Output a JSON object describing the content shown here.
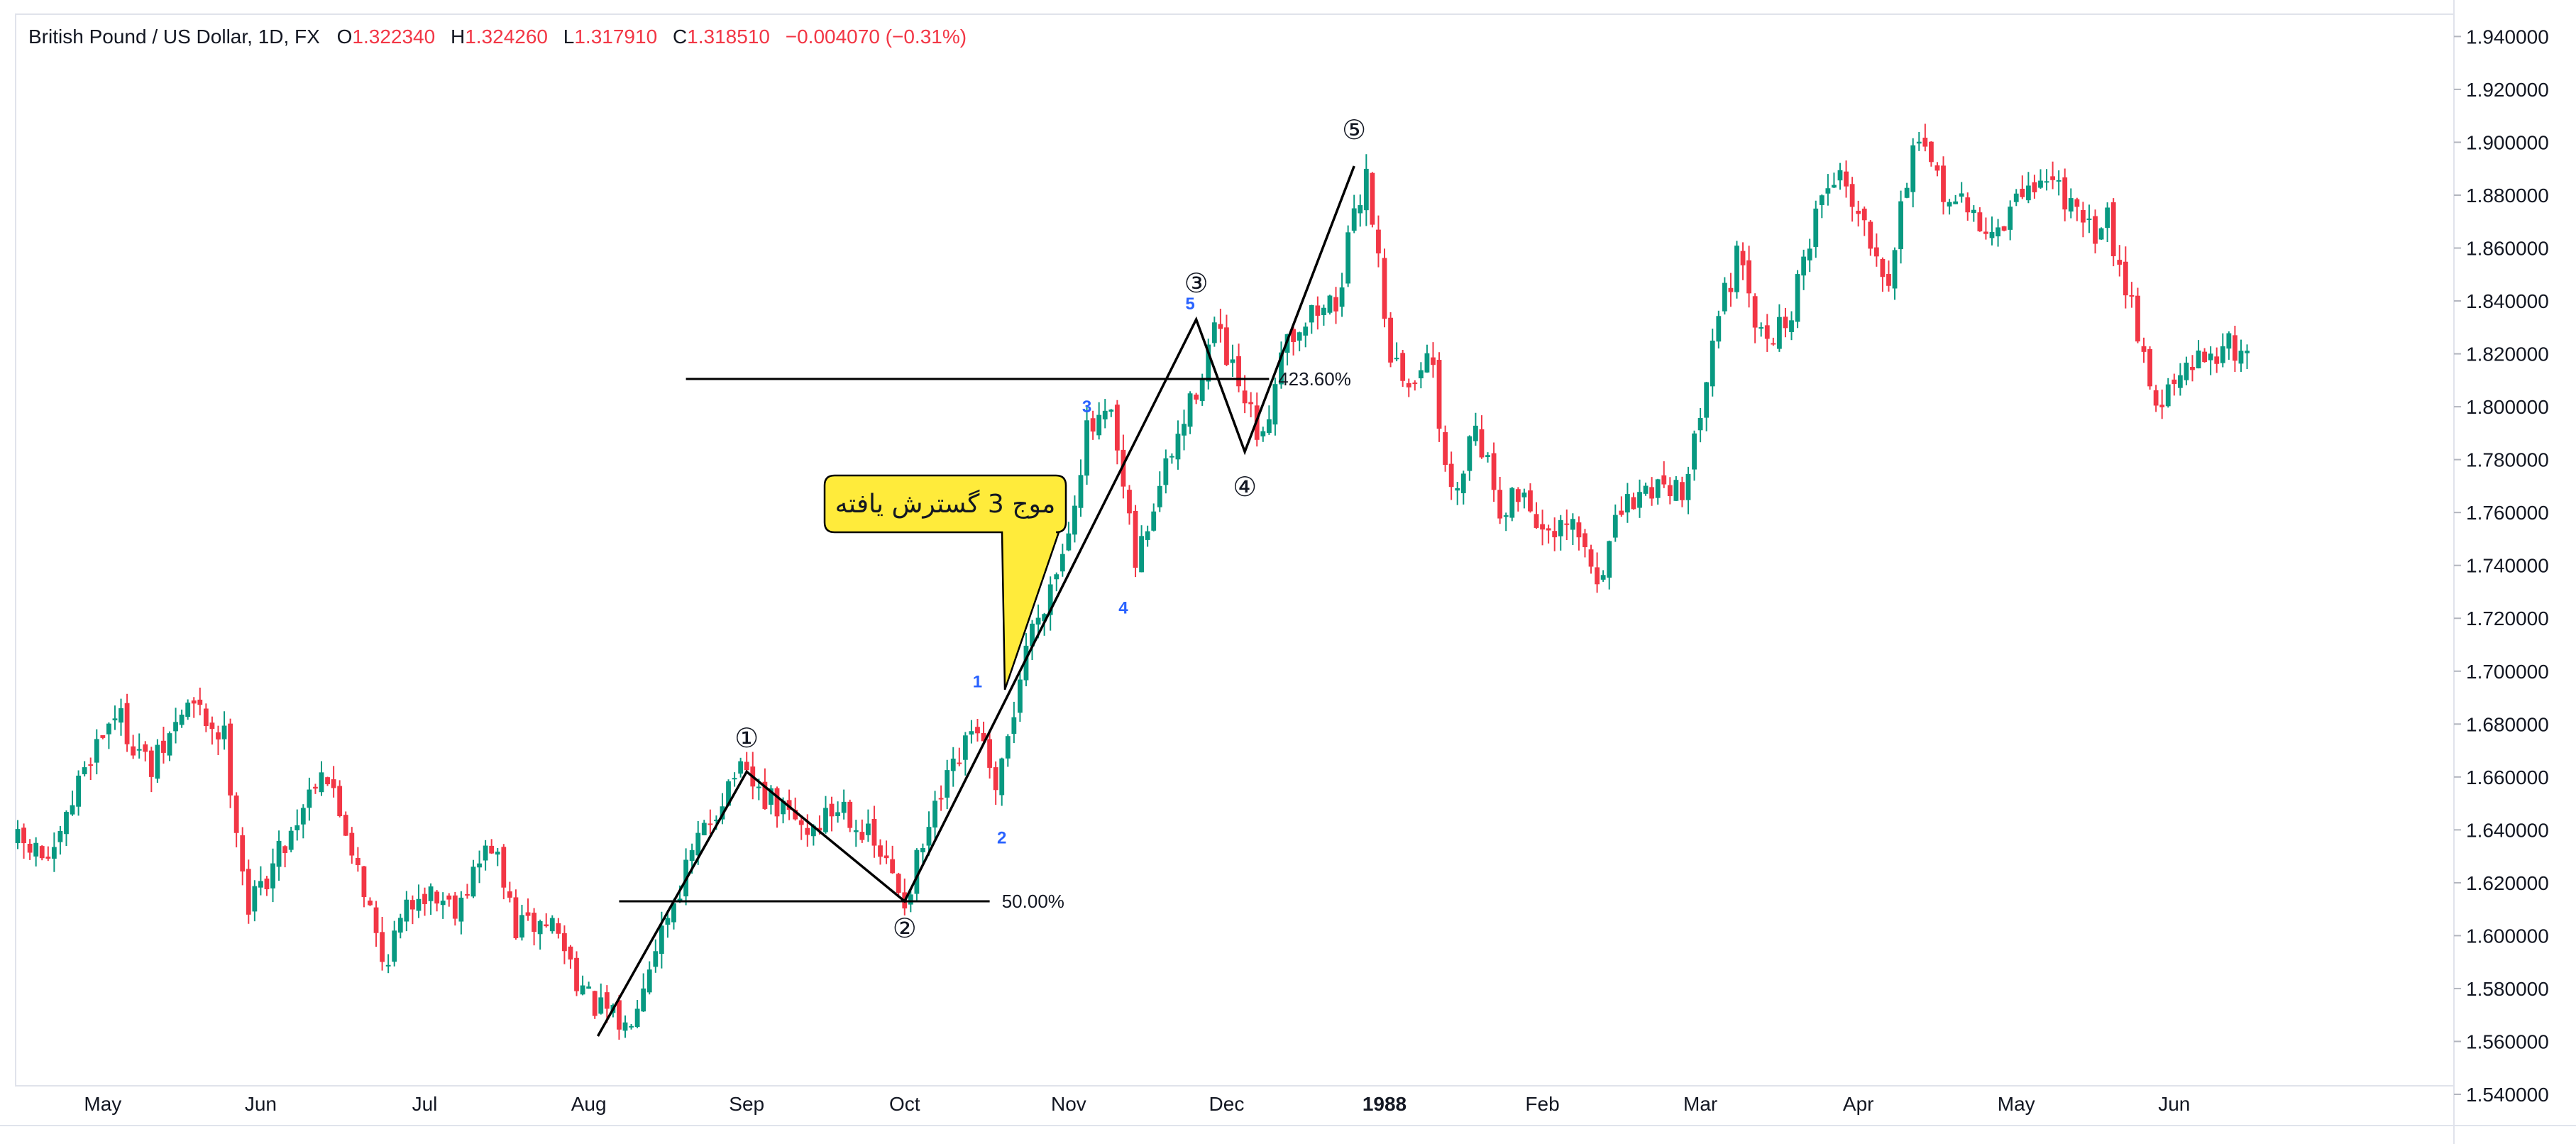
{
  "header": {
    "symbol": "British Pound / US Dollar, 1D, FX",
    "open_label": "O",
    "open": "1.322340",
    "high_label": "H",
    "high": "1.324260",
    "low_label": "L",
    "low": "1.317910",
    "close_label": "C",
    "close": "1.318510",
    "change": "−0.004070 (−0.31%)"
  },
  "colors": {
    "up": "#089981",
    "down": "#f23645",
    "lines": "#000000",
    "sublabels": "#2962ff",
    "callout_fill": "#ffeb3b"
  },
  "chart_data": {
    "type": "candlestick",
    "ylim": [
      1.53,
      1.945
    ],
    "y_ticks": [
      "1.540000",
      "1.560000",
      "1.580000",
      "1.600000",
      "1.620000",
      "1.640000",
      "1.660000",
      "1.680000",
      "1.700000",
      "1.720000",
      "1.740000",
      "1.760000",
      "1.780000",
      "1.800000",
      "1.820000",
      "1.840000",
      "1.860000",
      "1.880000",
      "1.900000",
      "1.920000",
      "1.940000"
    ],
    "x_labels": [
      {
        "label": "May",
        "bold": false,
        "bar": 14
      },
      {
        "label": "Jun",
        "bold": false,
        "bar": 40
      },
      {
        "label": "Jul",
        "bold": false,
        "bar": 67
      },
      {
        "label": "Aug",
        "bold": false,
        "bar": 94
      },
      {
        "label": "Sep",
        "bold": false,
        "bar": 120
      },
      {
        "label": "Oct",
        "bold": false,
        "bar": 146
      },
      {
        "label": "Nov",
        "bold": false,
        "bar": 173
      },
      {
        "label": "Dec",
        "bold": false,
        "bar": 199
      },
      {
        "label": "1988",
        "bold": true,
        "bar": 225
      },
      {
        "label": "Feb",
        "bold": false,
        "bar": 251
      },
      {
        "label": "Mar",
        "bold": false,
        "bar": 277
      },
      {
        "label": "Apr",
        "bold": false,
        "bar": 303
      },
      {
        "label": "May",
        "bold": false,
        "bar": 329
      },
      {
        "label": "Jun",
        "bold": false,
        "bar": 355
      }
    ],
    "bar_count": 368,
    "anchors": [
      [
        0,
        1.635
      ],
      [
        6,
        1.628
      ],
      [
        11,
        1.665
      ],
      [
        16,
        1.685
      ],
      [
        22,
        1.662
      ],
      [
        28,
        1.688
      ],
      [
        34,
        1.675
      ],
      [
        38,
        1.61
      ],
      [
        45,
        1.64
      ],
      [
        50,
        1.665
      ],
      [
        56,
        1.628
      ],
      [
        60,
        1.59
      ],
      [
        66,
        1.618
      ],
      [
        72,
        1.612
      ],
      [
        78,
        1.635
      ],
      [
        82,
        1.603
      ],
      [
        88,
        1.605
      ],
      [
        94,
        1.575
      ],
      [
        100,
        1.565
      ],
      [
        105,
        1.598
      ],
      [
        112,
        1.635
      ],
      [
        118,
        1.662
      ],
      [
        124,
        1.65
      ],
      [
        130,
        1.64
      ],
      [
        136,
        1.65
      ],
      [
        142,
        1.63
      ],
      [
        146,
        1.614
      ],
      [
        152,
        1.652
      ],
      [
        158,
        1.68
      ],
      [
        161,
        1.65
      ],
      [
        166,
        1.71
      ],
      [
        172,
        1.745
      ],
      [
        176,
        1.79
      ],
      [
        180,
        1.795
      ],
      [
        184,
        1.74
      ],
      [
        188,
        1.77
      ],
      [
        193,
        1.8
      ],
      [
        197,
        1.83
      ],
      [
        202,
        1.8
      ],
      [
        205,
        1.785
      ],
      [
        208,
        1.825
      ],
      [
        213,
        1.835
      ],
      [
        217,
        1.84
      ],
      [
        222,
        1.89
      ],
      [
        226,
        1.82
      ],
      [
        229,
        1.805
      ],
      [
        232,
        1.825
      ],
      [
        236,
        1.765
      ],
      [
        240,
        1.795
      ],
      [
        244,
        1.762
      ],
      [
        248,
        1.768
      ],
      [
        252,
        1.748
      ],
      [
        256,
        1.755
      ],
      [
        260,
        1.735
      ],
      [
        264,
        1.76
      ],
      [
        270,
        1.772
      ],
      [
        275,
        1.77
      ],
      [
        279,
        1.83
      ],
      [
        283,
        1.855
      ],
      [
        287,
        1.825
      ],
      [
        292,
        1.835
      ],
      [
        296,
        1.875
      ],
      [
        300,
        1.89
      ],
      [
        304,
        1.87
      ],
      [
        308,
        1.85
      ],
      [
        312,
        1.9
      ],
      [
        316,
        1.885
      ],
      [
        320,
        1.875
      ],
      [
        326,
        1.865
      ],
      [
        331,
        1.885
      ],
      [
        336,
        1.885
      ],
      [
        340,
        1.865
      ],
      [
        344,
        1.87
      ],
      [
        348,
        1.84
      ],
      [
        352,
        1.8
      ],
      [
        356,
        1.81
      ],
      [
        361,
        1.822
      ]
    ],
    "drawings": {
      "wave_path": [
        [
          95.5,
          1.562
        ],
        [
          120,
          1.662
        ],
        [
          146,
          1.613
        ],
        [
          194,
          1.833
        ],
        [
          202,
          1.783
        ],
        [
          220,
          1.891
        ]
      ],
      "wave_labels": [
        {
          "text": "①",
          "bar": 120,
          "price": 1.675
        },
        {
          "text": "②",
          "bar": 146,
          "price": 1.603
        },
        {
          "text": "③",
          "bar": 194,
          "price": 1.847
        },
        {
          "text": "④",
          "bar": 202,
          "price": 1.77
        },
        {
          "text": "⑤",
          "bar": 220,
          "price": 1.905
        }
      ],
      "sub_labels": [
        {
          "text": "1",
          "bar": 158,
          "price": 1.696
        },
        {
          "text": "2",
          "bar": 162,
          "price": 1.637
        },
        {
          "text": "3",
          "bar": 176,
          "price": 1.8
        },
        {
          "text": "4",
          "bar": 182,
          "price": 1.724
        },
        {
          "text": "5",
          "bar": 193,
          "price": 1.839
        }
      ],
      "fib_levels": [
        {
          "label": "50.00%",
          "price": 1.613,
          "from": 99,
          "to": 160,
          "label_bar": 162
        },
        {
          "label": "423.60%",
          "price": 1.8105,
          "from": 110,
          "to": 206,
          "label_bar": 207.5
        }
      ],
      "callout": {
        "text": "موج 3 گسترش یافته",
        "anchor_bar": 162.5,
        "anchor_price": 1.693
      }
    }
  }
}
